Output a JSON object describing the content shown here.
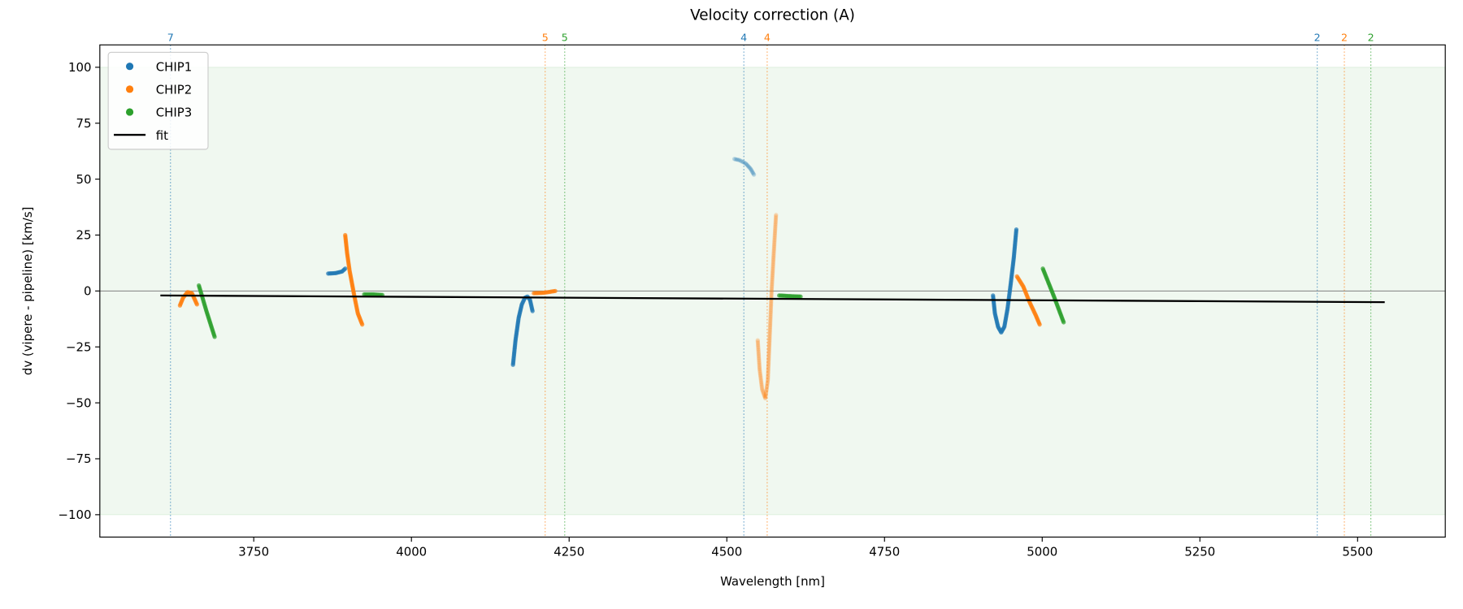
{
  "chart_data": {
    "type": "scatter",
    "title": "Velocity correction (A)",
    "xlabel": "Wavelength [nm]",
    "ylabel": "dv (vipere - pipeline) [km/s]",
    "xlim": [
      3506,
      5639
    ],
    "ylim": [
      -110,
      110
    ],
    "xticks": [
      3750,
      4000,
      4250,
      4500,
      4750,
      5000,
      5250,
      5500
    ],
    "yticks": [
      100,
      75,
      50,
      25,
      0,
      -25,
      -50,
      -75,
      -100
    ],
    "grid": false,
    "legend_position": "top-left",
    "shaded_band": {
      "ymin": -100,
      "ymax": 100,
      "color": "#2ca02c"
    },
    "zero_line": {
      "y": 0,
      "color": "#808080"
    },
    "series": [
      {
        "name": "CHIP1",
        "color": "#1f77b4",
        "segments": [
          {
            "faded": false,
            "points": [
              [
                3868,
                7.8
              ],
              [
                3880,
                8
              ],
              [
                3890,
                8.7
              ],
              [
                3895,
                10
              ]
            ]
          },
          {
            "faded": false,
            "points": [
              [
                4161,
                -33
              ],
              [
                4165,
                -22
              ],
              [
                4170,
                -12
              ],
              [
                4175,
                -6
              ],
              [
                4180,
                -3
              ],
              [
                4184,
                -2.5
              ],
              [
                4188,
                -4
              ],
              [
                4192,
                -9
              ]
            ]
          },
          {
            "faded": true,
            "points": [
              [
                4512,
                59
              ],
              [
                4520,
                58.5
              ],
              [
                4530,
                57
              ],
              [
                4538,
                54.5
              ],
              [
                4543,
                52
              ]
            ]
          },
          {
            "faded": false,
            "points": [
              [
                4922,
                -2
              ],
              [
                4925,
                -10
              ],
              [
                4930,
                -16
              ],
              [
                4935,
                -18.5
              ],
              [
                4940,
                -16
              ],
              [
                4945,
                -8
              ],
              [
                4950,
                3
              ],
              [
                4955,
                15
              ],
              [
                4959,
                27.5
              ]
            ]
          }
        ]
      },
      {
        "name": "CHIP2",
        "color": "#ff7f0e",
        "segments": [
          {
            "faded": false,
            "points": [
              [
                3633,
                -6.5
              ],
              [
                3638,
                -3
              ],
              [
                3645,
                -0.5
              ],
              [
                3652,
                -1
              ],
              [
                3660,
                -6
              ]
            ]
          },
          {
            "faded": false,
            "points": [
              [
                3895,
                25
              ],
              [
                3898,
                17
              ],
              [
                3902,
                9
              ],
              [
                3906,
                3
              ],
              [
                3910,
                -3
              ],
              [
                3915,
                -10
              ],
              [
                3922,
                -15
              ]
            ]
          },
          {
            "faded": false,
            "points": [
              [
                4194,
                -1
              ],
              [
                4210,
                -0.8
              ],
              [
                4228,
                0
              ]
            ]
          },
          {
            "faded": true,
            "points": [
              [
                4549,
                -22
              ],
              [
                4552,
                -35
              ],
              [
                4556,
                -44
              ],
              [
                4561,
                -48
              ],
              [
                4565,
                -40
              ],
              [
                4568,
                -20
              ],
              [
                4571,
                0
              ],
              [
                4574,
                15
              ],
              [
                4578,
                34
              ]
            ]
          },
          {
            "faded": false,
            "points": [
              [
                4960,
                6.5
              ],
              [
                4970,
                2
              ],
              [
                4980,
                -5
              ],
              [
                4990,
                -11
              ],
              [
                4996,
                -15
              ]
            ]
          }
        ]
      },
      {
        "name": "CHIP3",
        "color": "#2ca02c",
        "segments": [
          {
            "faded": false,
            "points": [
              [
                3663,
                2.5
              ],
              [
                3675,
                -9
              ],
              [
                3688,
                -20.5
              ]
            ]
          },
          {
            "faded": false,
            "points": [
              [
                3925,
                -1.5
              ],
              [
                3940,
                -1.5
              ],
              [
                3954,
                -1.8
              ]
            ]
          },
          {
            "faded": false,
            "points": [
              [
                4583,
                -2
              ],
              [
                4600,
                -2.3
              ],
              [
                4617,
                -2.5
              ]
            ]
          },
          {
            "faded": false,
            "points": [
              [
                5001,
                10
              ],
              [
                5018,
                -2
              ],
              [
                5034,
                -14
              ]
            ]
          }
        ]
      }
    ],
    "fit": {
      "name": "fit",
      "color": "#000000",
      "points": [
        [
          3602,
          -2
        ],
        [
          5543,
          -5
        ]
      ]
    },
    "order_markers": [
      {
        "x": 3618,
        "label": "7",
        "color": "#1f77b4"
      },
      {
        "x": 4212,
        "label": "5",
        "color": "#ff7f0e"
      },
      {
        "x": 4243,
        "label": "5",
        "color": "#2ca02c"
      },
      {
        "x": 4527,
        "label": "4",
        "color": "#1f77b4"
      },
      {
        "x": 4564,
        "label": "4",
        "color": "#ff7f0e"
      },
      {
        "x": 5436,
        "label": "2",
        "color": "#1f77b4"
      },
      {
        "x": 5479,
        "label": "2",
        "color": "#ff7f0e"
      },
      {
        "x": 5521,
        "label": "2",
        "color": "#2ca02c"
      }
    ]
  }
}
